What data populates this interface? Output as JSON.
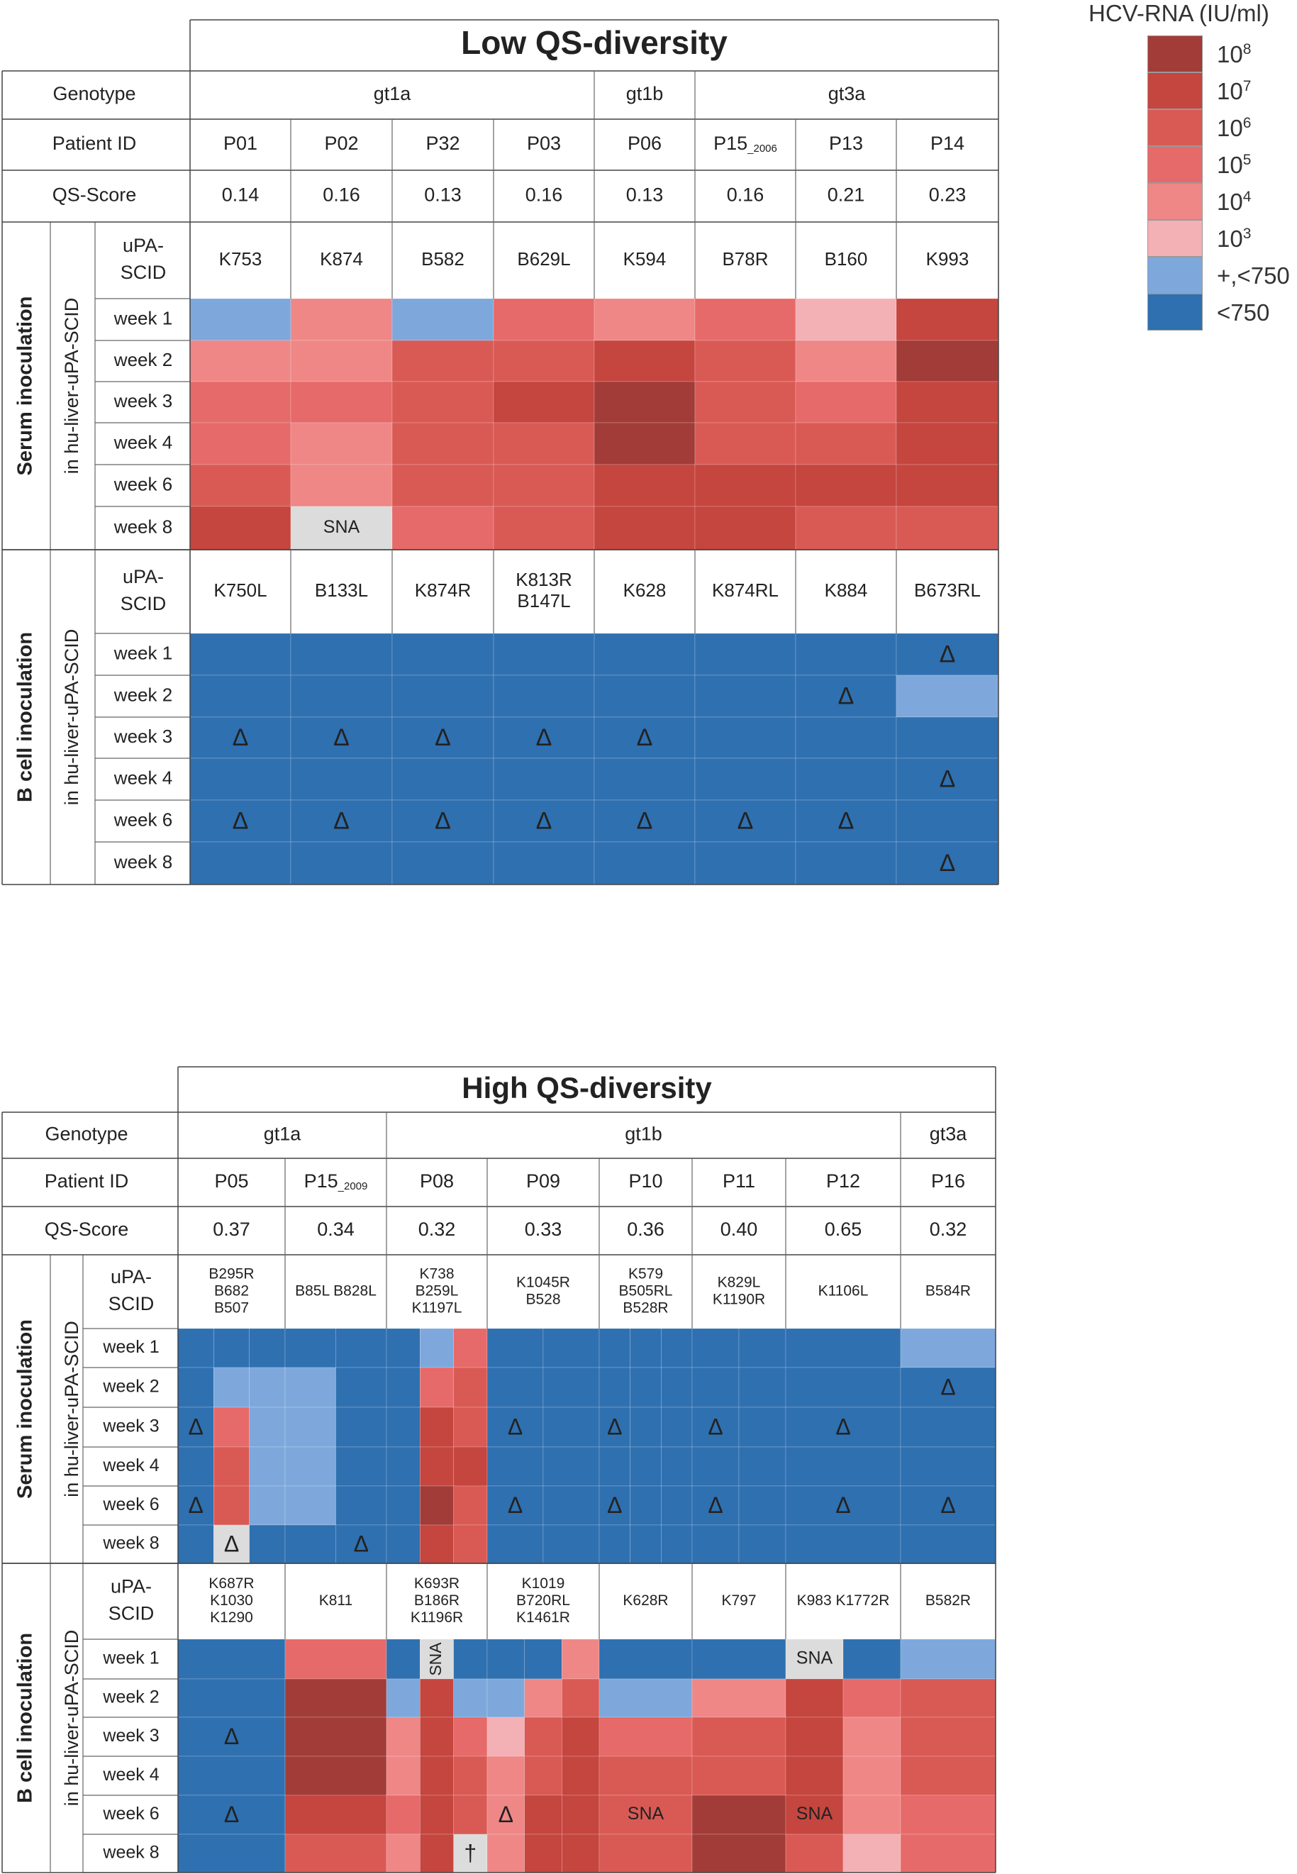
{
  "legend": {
    "title": "HCV-RNA (IU/ml)",
    "levels": [
      {
        "key": "e8",
        "base": "10",
        "exp": "8",
        "label": "10^8",
        "color": "#a23c38"
      },
      {
        "key": "e7",
        "base": "10",
        "exp": "7",
        "label": "10^7",
        "color": "#c5453f"
      },
      {
        "key": "e6",
        "base": "10",
        "exp": "6",
        "label": "10^6",
        "color": "#d95a55"
      },
      {
        "key": "e5",
        "base": "10",
        "exp": "5",
        "label": "10^5",
        "color": "#e66a69"
      },
      {
        "key": "e4",
        "base": "10",
        "exp": "4",
        "label": "10^4",
        "color": "#ef8787"
      },
      {
        "key": "e3",
        "base": "10",
        "exp": "3",
        "label": "10^3",
        "color": "#f3b0b5"
      },
      {
        "key": "p",
        "base": "+,<750",
        "exp": "",
        "label": "+,<750",
        "color": "#7ea8dc"
      },
      {
        "key": "n",
        "base": "<750",
        "exp": "",
        "label": "<750",
        "color": "#2f70b0"
      }
    ],
    "sna_color": "#dcdcdc"
  },
  "chart_data": [
    {
      "type": "heatmap",
      "title": "Low QS-diversity",
      "row_labels": {
        "genotype": "Genotype",
        "patient": "Patient ID",
        "qs": "QS-Score",
        "upa": "uPA-\nSCID"
      },
      "weeks": [
        "week 1",
        "week 2",
        "week 3",
        "week 4",
        "week 6",
        "week 8"
      ],
      "genotypes": [
        {
          "label": "gt1a",
          "span": 4
        },
        {
          "label": "gt1b",
          "span": 1
        },
        {
          "label": "gt3a",
          "span": 3
        }
      ],
      "patients": [
        {
          "id": "P01",
          "qs": "0.14"
        },
        {
          "id": "P02",
          "qs": "0.16"
        },
        {
          "id": "P32",
          "qs": "0.13"
        },
        {
          "id": "P03",
          "qs": "0.16"
        },
        {
          "id": "P06",
          "qs": "0.13"
        },
        {
          "id": "P15",
          "sub": "_2006",
          "qs": "0.16"
        },
        {
          "id": "P13",
          "qs": "0.21"
        },
        {
          "id": "P14",
          "qs": "0.23"
        }
      ],
      "blocks": [
        {
          "label": "Serum inoculation",
          "sublabel": "in hu-liver-uPA-SCID",
          "mice": [
            "K753",
            "K874",
            "B582",
            "B629L",
            "K594",
            "B78R",
            "B160",
            "K993"
          ],
          "cells": [
            [
              [
                "p"
              ],
              [
                "e4"
              ],
              [
                "p"
              ],
              [
                "e5"
              ],
              [
                "e4"
              ],
              [
                "e5"
              ],
              [
                "e3"
              ],
              [
                "e7"
              ]
            ],
            [
              [
                "e4"
              ],
              [
                "e4"
              ],
              [
                "e6"
              ],
              [
                "e6"
              ],
              [
                "e7"
              ],
              [
                "e6"
              ],
              [
                "e4"
              ],
              [
                "e8"
              ]
            ],
            [
              [
                "e5"
              ],
              [
                "e5"
              ],
              [
                "e6"
              ],
              [
                "e7"
              ],
              [
                "e8"
              ],
              [
                "e6"
              ],
              [
                "e5"
              ],
              [
                "e7"
              ]
            ],
            [
              [
                "e5"
              ],
              [
                "e4"
              ],
              [
                "e6"
              ],
              [
                "e6"
              ],
              [
                "e8"
              ],
              [
                "e6"
              ],
              [
                "e6"
              ],
              [
                "e7"
              ]
            ],
            [
              [
                "e6"
              ],
              [
                "e4"
              ],
              [
                "e6"
              ],
              [
                "e6"
              ],
              [
                "e7"
              ],
              [
                "e7"
              ],
              [
                "e7"
              ],
              [
                "e7"
              ]
            ],
            [
              [
                "e7"
              ],
              [
                "SNA"
              ],
              [
                "e5"
              ],
              [
                "e6"
              ],
              [
                "e7"
              ],
              [
                "e7"
              ],
              [
                "e6"
              ],
              [
                "e6"
              ]
            ]
          ]
        },
        {
          "label": "B cell inoculation",
          "sublabel": "in hu-liver-uPA-SCID",
          "mice": [
            "K750L",
            "B133L",
            "K874R",
            "K813R\nB147L",
            "K628",
            "K874RL",
            "K884",
            "B673RL"
          ],
          "cells": [
            [
              [
                "n"
              ],
              [
                "n"
              ],
              [
                "n"
              ],
              [
                "n"
              ],
              [
                "n"
              ],
              [
                "n"
              ],
              [
                "n"
              ],
              [
                "n:Δ"
              ]
            ],
            [
              [
                "n"
              ],
              [
                "n"
              ],
              [
                "n"
              ],
              [
                "n"
              ],
              [
                "n"
              ],
              [
                "n"
              ],
              [
                "n:Δ"
              ],
              [
                "p"
              ]
            ],
            [
              [
                "n:Δ"
              ],
              [
                "n:Δ"
              ],
              [
                "n:Δ"
              ],
              [
                "n:Δ"
              ],
              [
                "n:Δ"
              ],
              [
                "n"
              ],
              [
                "n"
              ],
              [
                "n"
              ]
            ],
            [
              [
                "n"
              ],
              [
                "n"
              ],
              [
                "n"
              ],
              [
                "n"
              ],
              [
                "n"
              ],
              [
                "n"
              ],
              [
                "n"
              ],
              [
                "n:Δ"
              ]
            ],
            [
              [
                "n:Δ"
              ],
              [
                "n:Δ"
              ],
              [
                "n:Δ"
              ],
              [
                "n:Δ"
              ],
              [
                "n:Δ"
              ],
              [
                "n:Δ"
              ],
              [
                "n:Δ"
              ],
              [
                "n"
              ]
            ],
            [
              [
                "n"
              ],
              [
                "n"
              ],
              [
                "n"
              ],
              [
                "n"
              ],
              [
                "n"
              ],
              [
                "n"
              ],
              [
                "n"
              ],
              [
                "n:Δ"
              ]
            ]
          ]
        }
      ]
    },
    {
      "type": "heatmap",
      "title": "High QS-diversity",
      "row_labels": {
        "genotype": "Genotype",
        "patient": "Patient ID",
        "qs": "QS-Score",
        "upa": "uPA-\nSCID"
      },
      "weeks": [
        "week 1",
        "week 2",
        "week 3",
        "week 4",
        "week 6",
        "week 8"
      ],
      "genotypes": [
        {
          "label": "gt1a",
          "span": 2
        },
        {
          "label": "gt1b",
          "span": 5
        },
        {
          "label": "gt3a",
          "span": 1
        }
      ],
      "patients": [
        {
          "id": "P05",
          "qs": "0.37"
        },
        {
          "id": "P15",
          "sub": "_2009",
          "qs": "0.34"
        },
        {
          "id": "P08",
          "qs": "0.32"
        },
        {
          "id": "P09",
          "qs": "0.33"
        },
        {
          "id": "P10",
          "qs": "0.36"
        },
        {
          "id": "P11",
          "qs": "0.40"
        },
        {
          "id": "P12",
          "qs": "0.65"
        },
        {
          "id": "P16",
          "qs": "0.32"
        }
      ],
      "blocks": [
        {
          "label": "Serum inoculation",
          "sublabel": "in hu-liver-uPA-SCID",
          "mice": [
            "B295R\nB682\nB507",
            "B85L   B828L",
            "K738\nB259L\nK1197L",
            "K1045R\nB528",
            "K579\nB505RL\nB528R",
            "K829L\nK1190R",
            "K1106L",
            "B584R"
          ],
          "cells": [
            [
              [
                "n",
                "n",
                "n"
              ],
              [
                "n",
                "n"
              ],
              [
                "n",
                "p",
                "e5"
              ],
              [
                "n",
                "n"
              ],
              [
                "n",
                "n",
                "n"
              ],
              [
                "n",
                "n"
              ],
              [
                "n"
              ],
              [
                "p"
              ]
            ],
            [
              [
                "n",
                "p",
                "p"
              ],
              [
                "p",
                "n"
              ],
              [
                "n",
                "e5",
                "e6"
              ],
              [
                "n",
                "n"
              ],
              [
                "n",
                "n",
                "n"
              ],
              [
                "n",
                "n"
              ],
              [
                "n"
              ],
              [
                "n:Δ"
              ]
            ],
            [
              [
                "n:Δ",
                "e5",
                "p"
              ],
              [
                "p",
                "n"
              ],
              [
                "n",
                "e7",
                "e6"
              ],
              [
                "n:Δ",
                "n"
              ],
              [
                "n:Δ",
                "n",
                "n"
              ],
              [
                "n:Δ",
                "n"
              ],
              [
                "n:Δ"
              ],
              [
                "n"
              ]
            ],
            [
              [
                "n",
                "e6",
                "p"
              ],
              [
                "p",
                "n"
              ],
              [
                "n",
                "e7",
                "e7"
              ],
              [
                "n",
                "n"
              ],
              [
                "n",
                "n",
                "n"
              ],
              [
                "n",
                "n"
              ],
              [
                "n"
              ],
              [
                "n"
              ]
            ],
            [
              [
                "n:Δ",
                "e6",
                "p"
              ],
              [
                "p",
                "n"
              ],
              [
                "n",
                "e8",
                "e6"
              ],
              [
                "n:Δ",
                "n"
              ],
              [
                "n:Δ",
                "n",
                "n"
              ],
              [
                "n:Δ",
                "n"
              ],
              [
                "n:Δ"
              ],
              [
                "n:Δ"
              ]
            ],
            [
              [
                "n",
                "SNA:Δ",
                "n"
              ],
              [
                "n",
                "n:Δ"
              ],
              [
                "n",
                "e7",
                "e6"
              ],
              [
                "n",
                "n"
              ],
              [
                "n",
                "n",
                "n"
              ],
              [
                "n",
                "n"
              ],
              [
                "n"
              ],
              [
                "n"
              ]
            ]
          ]
        },
        {
          "label": "B cell inoculation",
          "sublabel": "in hu-liver-uPA-SCID",
          "mice": [
            "K687R\nK1030\nK1290",
            "K811",
            "K693R\nB186R\nK1196R",
            "K1019\nB720RL\nK1461R",
            "K628R",
            "K797",
            "K983   K1772R",
            "B582R"
          ],
          "cells": [
            [
              [
                "n"
              ],
              [
                "e5"
              ],
              [
                "n",
                "SNAv",
                "n"
              ],
              [
                "n",
                "n",
                "e4"
              ],
              [
                "n"
              ],
              [
                "n"
              ],
              [
                "SNA",
                "n"
              ],
              [
                "p"
              ]
            ],
            [
              [
                "n"
              ],
              [
                "e8"
              ],
              [
                "p",
                "e7",
                "p"
              ],
              [
                "p",
                "e4",
                "e6"
              ],
              [
                "p"
              ],
              [
                "e4"
              ],
              [
                "e7",
                "e5"
              ],
              [
                "e6"
              ]
            ],
            [
              [
                "n:Δ"
              ],
              [
                "e8"
              ],
              [
                "e4",
                "e7",
                "e5"
              ],
              [
                "e3",
                "e6",
                "e7"
              ],
              [
                "e5"
              ],
              [
                "e6"
              ],
              [
                "e7",
                "e4"
              ],
              [
                "e6"
              ]
            ],
            [
              [
                "n"
              ],
              [
                "e8"
              ],
              [
                "e4",
                "e7",
                "e6"
              ],
              [
                "e4",
                "e6",
                "e7"
              ],
              [
                "e6"
              ],
              [
                "e6"
              ],
              [
                "e7",
                "e4"
              ],
              [
                "e6"
              ]
            ],
            [
              [
                "n:Δ"
              ],
              [
                "e7"
              ],
              [
                "e5",
                "e7",
                "e6"
              ],
              [
                "e4:Δ",
                "e7",
                "e7"
              ],
              [
                "e6:SNA"
              ],
              [
                "e8"
              ],
              [
                "e7:SNA",
                "e4"
              ],
              [
                "e5"
              ]
            ],
            [
              [
                "n"
              ],
              [
                "e6"
              ],
              [
                "e4",
                "e7",
                "SNA:†"
              ],
              [
                "e4",
                "e7",
                "e7"
              ],
              [
                "e6"
              ],
              [
                "e8"
              ],
              [
                "e6",
                "e3"
              ],
              [
                "e5"
              ]
            ]
          ]
        }
      ]
    }
  ]
}
